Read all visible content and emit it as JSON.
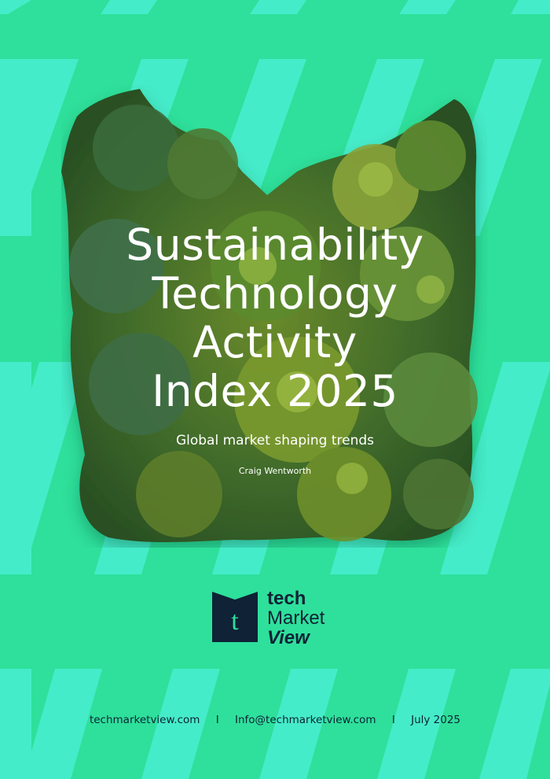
{
  "cover": {
    "title_lines": [
      "Sustainability",
      "Technology",
      "Activity",
      "Index 2025"
    ],
    "subtitle": "Global market shaping trends",
    "author": "Craig Wentworth"
  },
  "logo": {
    "mark_letter": "t",
    "line1": "tech",
    "line2": "Market",
    "line3": "View"
  },
  "footer": {
    "website": "techmarketview.com",
    "separator": "I",
    "email": "Info@techmarketview.com",
    "date": "July 2025"
  },
  "colors": {
    "background": "#2ee09b",
    "pattern": "#45ecc9",
    "navy": "#0f2236",
    "text": "#ffffff"
  },
  "icons": {
    "forest_image": "forest-canopy-image",
    "logo_mark": "techmarketview-logo-icon"
  }
}
